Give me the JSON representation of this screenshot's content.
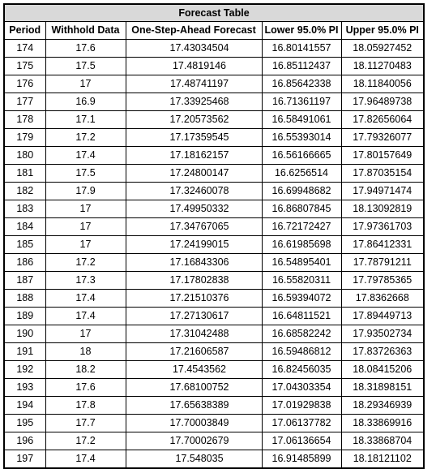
{
  "table": {
    "title": "Forecast Table",
    "headers": [
      "Period",
      "Withhold Data",
      "One-Step-Ahead Forecast",
      "Lower 95.0% PI",
      "Upper 95.0% PI"
    ],
    "rows": [
      [
        "174",
        "17.6",
        "17.43034504",
        "16.80141557",
        "18.05927452"
      ],
      [
        "175",
        "17.5",
        "17.4819146",
        "16.85112437",
        "18.11270483"
      ],
      [
        "176",
        "17",
        "17.48741197",
        "16.85642338",
        "18.11840056"
      ],
      [
        "177",
        "16.9",
        "17.33925468",
        "16.71361197",
        "17.96489738"
      ],
      [
        "178",
        "17.1",
        "17.20573562",
        "16.58491061",
        "17.82656064"
      ],
      [
        "179",
        "17.2",
        "17.17359545",
        "16.55393014",
        "17.79326077"
      ],
      [
        "180",
        "17.4",
        "17.18162157",
        "16.56166665",
        "17.80157649"
      ],
      [
        "181",
        "17.5",
        "17.24800147",
        "16.6256514",
        "17.87035154"
      ],
      [
        "182",
        "17.9",
        "17.32460078",
        "16.69948682",
        "17.94971474"
      ],
      [
        "183",
        "17",
        "17.49950332",
        "16.86807845",
        "18.13092819"
      ],
      [
        "184",
        "17",
        "17.34767065",
        "16.72172427",
        "17.97361703"
      ],
      [
        "185",
        "17",
        "17.24199015",
        "16.61985698",
        "17.86412331"
      ],
      [
        "186",
        "17.2",
        "17.16843306",
        "16.54895401",
        "17.78791211"
      ],
      [
        "187",
        "17.3",
        "17.17802838",
        "16.55820311",
        "17.79785365"
      ],
      [
        "188",
        "17.4",
        "17.21510376",
        "16.59394072",
        "17.8362668"
      ],
      [
        "189",
        "17.4",
        "17.27130617",
        "16.64811521",
        "17.89449713"
      ],
      [
        "190",
        "17",
        "17.31042488",
        "16.68582242",
        "17.93502734"
      ],
      [
        "191",
        "18",
        "17.21606587",
        "16.59486812",
        "17.83726363"
      ],
      [
        "192",
        "18.2",
        "17.4543562",
        "16.82456035",
        "18.08415206"
      ],
      [
        "193",
        "17.6",
        "17.68100752",
        "17.04303354",
        "18.31898151"
      ],
      [
        "194",
        "17.8",
        "17.65638389",
        "17.01929838",
        "18.29346939"
      ],
      [
        "195",
        "17.7",
        "17.70003849",
        "17.06137782",
        "18.33869916"
      ],
      [
        "196",
        "17.2",
        "17.70002679",
        "17.06136654",
        "18.33868704"
      ],
      [
        "197",
        "17.4",
        "17.548035",
        "16.91485899",
        "18.18121102"
      ]
    ]
  }
}
